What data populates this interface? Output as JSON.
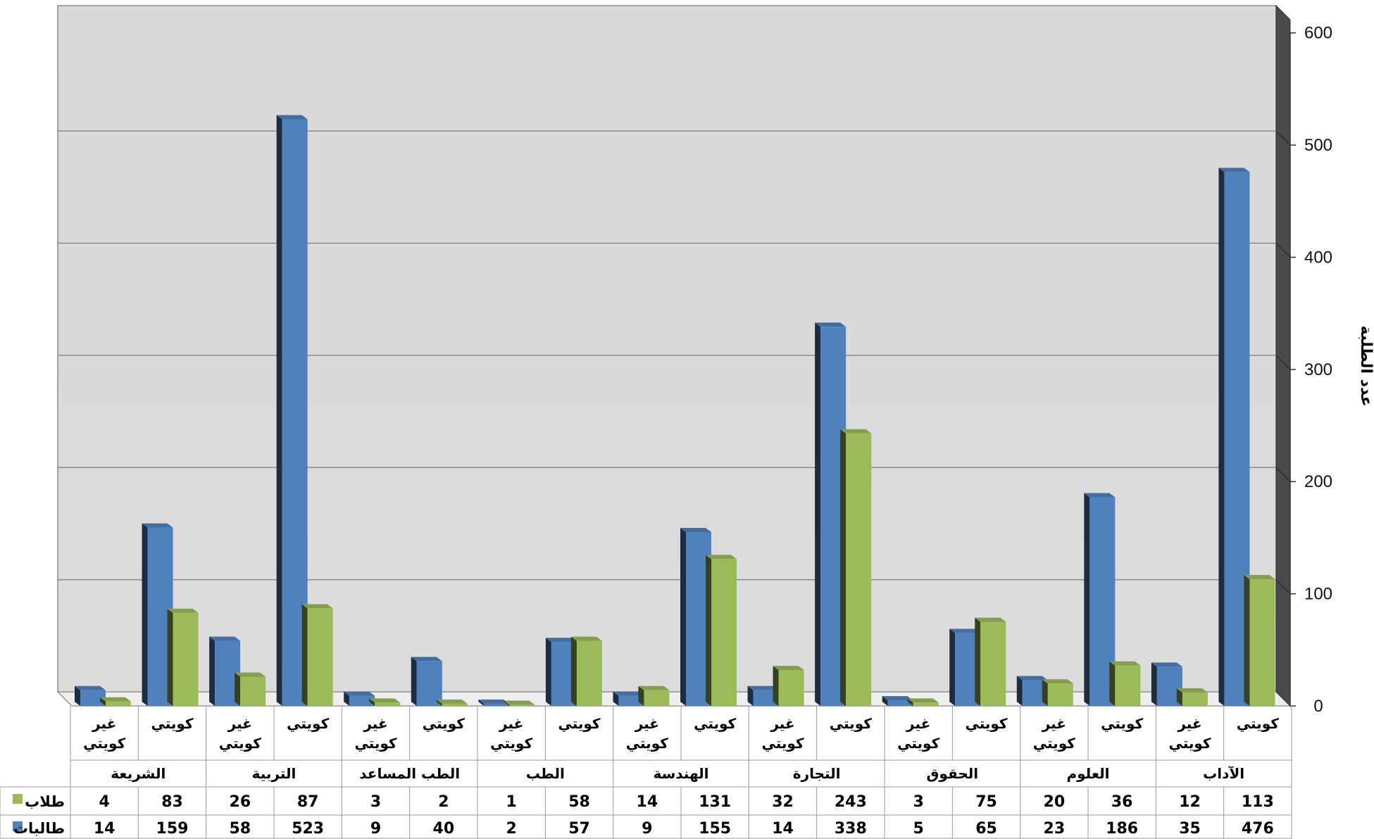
{
  "chart_data": {
    "type": "bar",
    "ylabel": "عدد الطلبة",
    "ylim": [
      0,
      600
    ],
    "yticks": [
      0,
      100,
      200,
      300,
      400,
      500,
      600
    ],
    "y_axis_side": "right",
    "grid": true,
    "legend": "table-left",
    "groups": [
      "الشريعة",
      "التربية",
      "الطب المساعد",
      "الطب",
      "الهندسة",
      "التجارة",
      "الحقوق",
      "العلوم",
      "الآداب"
    ],
    "subcategories": [
      "غير كويتي",
      "كويتي"
    ],
    "series": [
      {
        "name": "طلاب",
        "color": "#9BBB59",
        "values": [
          4,
          83,
          26,
          87,
          3,
          2,
          1,
          58,
          14,
          131,
          32,
          243,
          3,
          75,
          20,
          36,
          12,
          113
        ]
      },
      {
        "name": "طالبات",
        "color": "#4F81BD",
        "values": [
          14,
          159,
          58,
          523,
          9,
          40,
          2,
          57,
          9,
          155,
          14,
          338,
          5,
          65,
          23,
          186,
          35,
          476
        ]
      }
    ]
  }
}
